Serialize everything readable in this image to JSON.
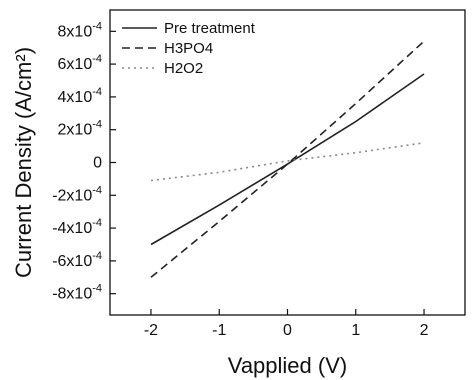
{
  "chart_data": {
    "type": "line",
    "xlabel": "Vapplied (V)",
    "ylabel": "Current Density (A/cm²)",
    "xlim": [
      -2.6,
      2.6
    ],
    "ylim": [
      -0.00093,
      0.00093
    ],
    "x_ticks": [
      -2,
      -1,
      0,
      1,
      2
    ],
    "x_tick_labels": [
      "-2",
      "-1",
      "0",
      "1",
      "2"
    ],
    "y_ticks": [
      -0.0008,
      -0.0006,
      -0.0004,
      -0.0002,
      0,
      0.0002,
      0.0004,
      0.0006,
      0.0008
    ],
    "y_tick_labels": [
      {
        "mant": "-8x10",
        "exp": "-4"
      },
      {
        "mant": "-6x10",
        "exp": "-4"
      },
      {
        "mant": "-4x10",
        "exp": "-4"
      },
      {
        "mant": "-2x10",
        "exp": "-4"
      },
      {
        "mant": "0",
        "exp": ""
      },
      {
        "mant": "2x10",
        "exp": "-4"
      },
      {
        "mant": "4x10",
        "exp": "-4"
      },
      {
        "mant": "6x10",
        "exp": "-4"
      },
      {
        "mant": "8x10",
        "exp": "-4"
      }
    ],
    "grid": false,
    "legend_position": "top-left",
    "series": [
      {
        "name": "Pre treatment",
        "style": "solid",
        "color": "#222222",
        "x": [
          -2,
          -1,
          0,
          1,
          2
        ],
        "y": [
          -0.0005,
          -0.00026,
          -1e-05,
          0.00025,
          0.00054
        ]
      },
      {
        "name": "H3PO4",
        "style": "dashed",
        "color": "#222222",
        "x": [
          -2,
          -1,
          0,
          1,
          2
        ],
        "y": [
          -0.0007,
          -0.00036,
          -1e-05,
          0.00036,
          0.00074
        ]
      },
      {
        "name": "H2O2",
        "style": "dotted",
        "color": "#8a8a8a",
        "x": [
          -2,
          -1,
          0,
          1,
          2
        ],
        "y": [
          -0.00011,
          -6e-05,
          1e-05,
          6e-05,
          0.00012
        ]
      }
    ]
  }
}
